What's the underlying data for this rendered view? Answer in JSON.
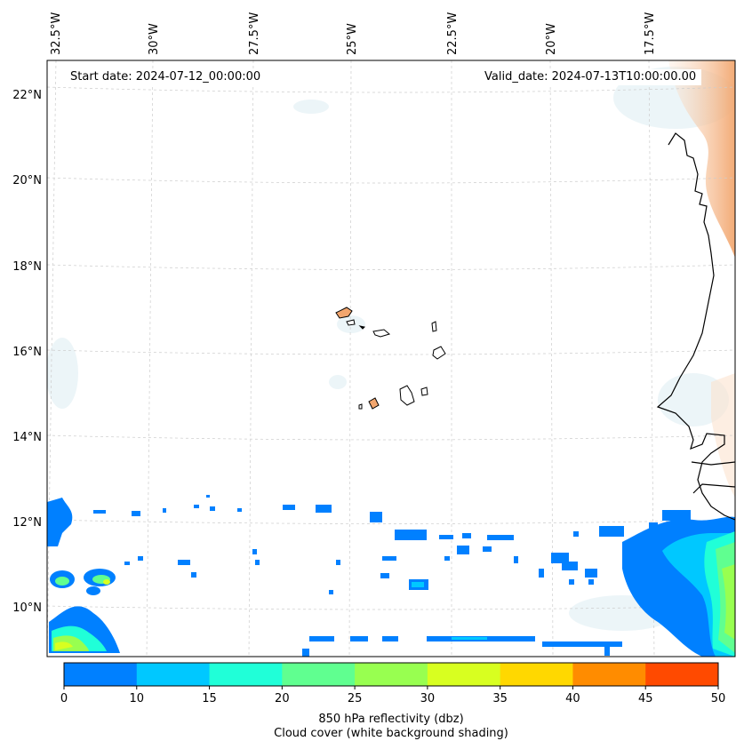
{
  "map": {
    "start_date_label": "Start date: 2024-07-12_00:00:00",
    "valid_date_label": "Valid_date: 2024-07-13T10:00:00.00",
    "longitude_labels": [
      "32.5°W",
      "30°W",
      "27.5°W",
      "25°W",
      "22.5°W",
      "20°W",
      "17.5°W"
    ],
    "latitude_labels": [
      "22°N",
      "20°N",
      "18°N",
      "16°N",
      "14°N",
      "12°N",
      "10°N"
    ],
    "features": [
      "coastline-west-africa",
      "cape-verde-islands",
      "reflectivity-contours",
      "cloud-cover-shading"
    ]
  },
  "colorbar": {
    "bounds": [
      0,
      10,
      15,
      20,
      25,
      30,
      35,
      40,
      45,
      50
    ],
    "tick_labels": [
      "0",
      "10",
      "15",
      "20",
      "25",
      "30",
      "35",
      "40",
      "45",
      "50"
    ],
    "colors": [
      "#0080ff",
      "#00c8ff",
      "#20ffd8",
      "#60ff90",
      "#98ff50",
      "#d8ff20",
      "#ffd800",
      "#ff8c00",
      "#ff4a00"
    ],
    "label_line1": "850 hPa reflectivity (dbz)",
    "label_line2": "Cloud cover (white background shading)"
  },
  "colors": {
    "land_warm": "#f2a66e",
    "cloud_light": "#dcecf2",
    "coast": "#000000",
    "grid": "#cccccc"
  }
}
